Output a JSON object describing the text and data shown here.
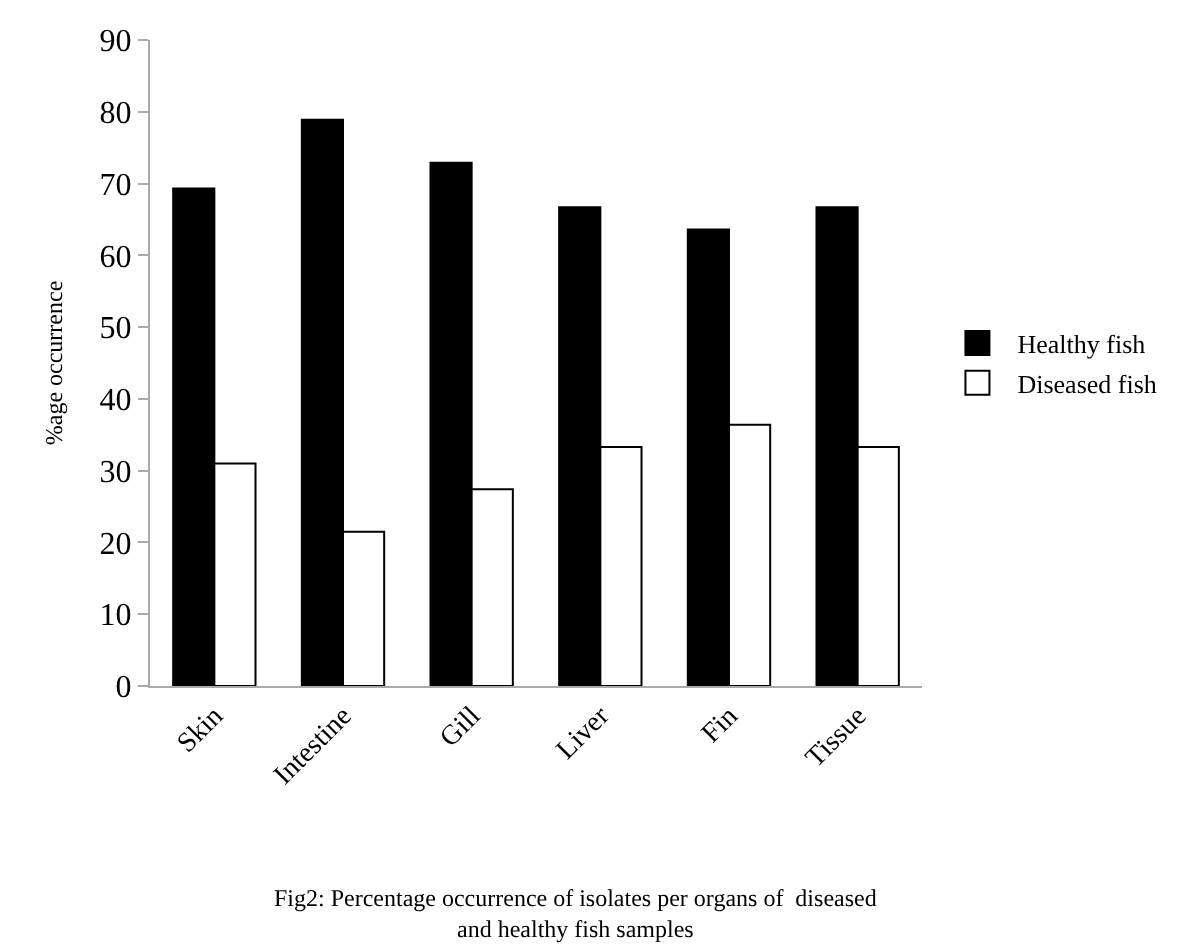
{
  "chart_data": {
    "type": "bar",
    "ylabel": "%age occurrence",
    "categories": [
      "Skin",
      "Intestine",
      "Gill",
      "Liver",
      "Fin",
      "Tissue"
    ],
    "series": [
      {
        "name": "Healthy fish",
        "color": "#000000",
        "values": [
          69.3,
          78.9,
          72.9,
          66.7,
          63.6,
          66.7
        ]
      },
      {
        "name": "Diseased fish",
        "color": "#ffffff",
        "values": [
          31.0,
          21.5,
          27.4,
          33.3,
          36.4,
          33.3
        ]
      }
    ],
    "ylim": [
      0,
      90
    ],
    "yticks": [
      0,
      10,
      20,
      30,
      40,
      50,
      60,
      70,
      80,
      90
    ],
    "legend": "right",
    "annotations": [
      "Fig2: Percentage occurrence of isolates per organs of  diseased\nand healthy fish samples"
    ]
  }
}
